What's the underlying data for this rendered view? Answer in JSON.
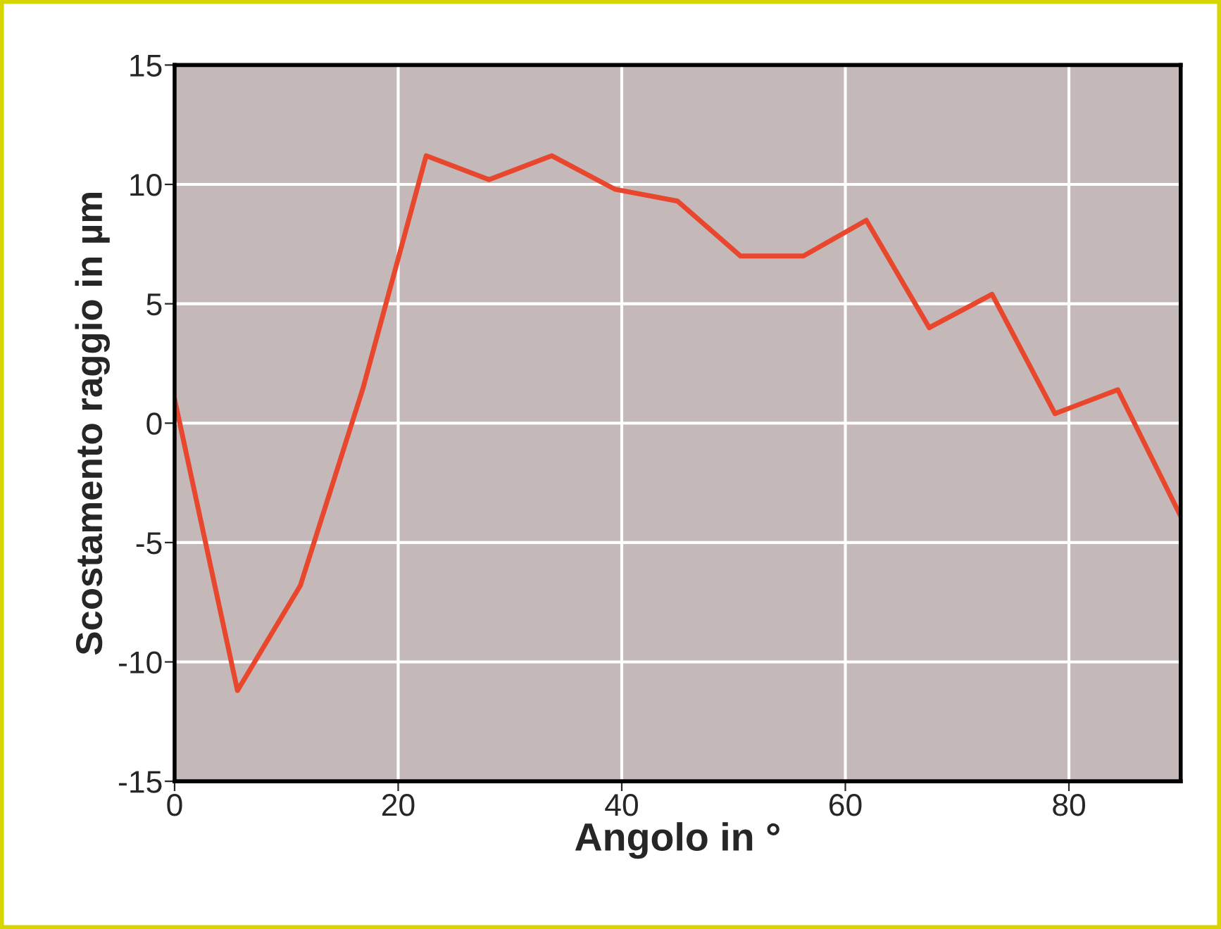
{
  "chart_data": {
    "type": "line",
    "xlabel": "Angolo in °",
    "ylabel": "Scostamento raggio in µm",
    "x": [
      0,
      5.625,
      11.25,
      16.875,
      22.5,
      28.125,
      33.75,
      39.375,
      45,
      50.625,
      56.25,
      61.875,
      67.5,
      73.125,
      78.75,
      84.375,
      90
    ],
    "series": [
      {
        "color": "#e8472e",
        "values": [
          1.0,
          -11.2,
          -6.8,
          1.5,
          11.2,
          10.2,
          11.2,
          9.8,
          9.3,
          7.0,
          7.0,
          8.5,
          4.0,
          5.4,
          0.4,
          1.4,
          -3.9
        ]
      }
    ],
    "xlim": [
      0,
      90
    ],
    "xticks": [
      0,
      20,
      40,
      60,
      80
    ],
    "ylim": [
      -15,
      15
    ],
    "yticks": [
      -15,
      -10,
      -5,
      0,
      5,
      10,
      15
    ],
    "grid": true,
    "marker": "none",
    "line_style": "solid"
  }
}
